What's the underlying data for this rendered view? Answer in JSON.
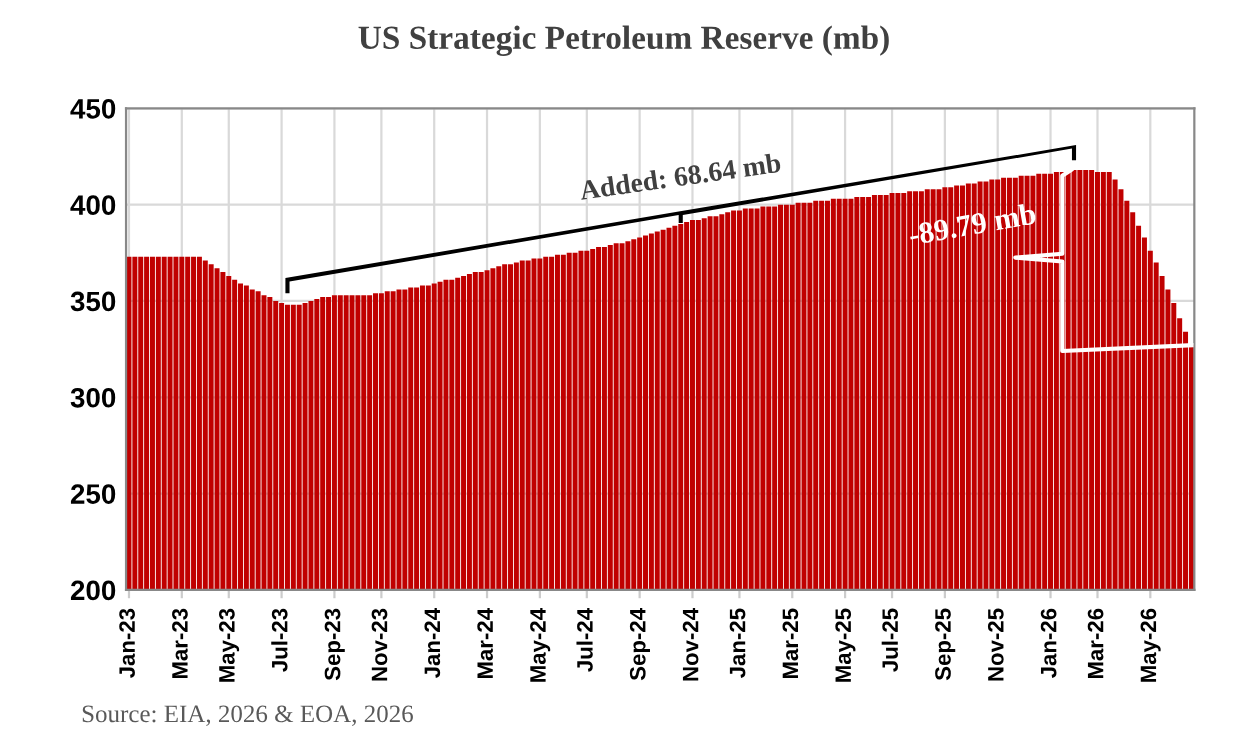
{
  "chart_data": {
    "type": "bar",
    "title": "US Strategic Petroleum Reserve (mb)",
    "categories": [
      "Jan-23",
      null,
      null,
      null,
      null,
      null,
      null,
      null,
      null,
      "Mar-23",
      null,
      null,
      null,
      null,
      null,
      null,
      null,
      "May-23",
      null,
      null,
      null,
      null,
      null,
      null,
      null,
      null,
      "Jul-23",
      null,
      null,
      null,
      null,
      null,
      null,
      null,
      null,
      "Sep-23",
      null,
      null,
      null,
      null,
      null,
      null,
      null,
      "Nov-23",
      null,
      null,
      null,
      null,
      null,
      null,
      null,
      null,
      "Jan-24",
      null,
      null,
      null,
      null,
      null,
      null,
      null,
      null,
      "Mar-24",
      null,
      null,
      null,
      null,
      null,
      null,
      null,
      null,
      "May-24",
      null,
      null,
      null,
      null,
      null,
      null,
      null,
      "Jul-24",
      null,
      null,
      null,
      null,
      null,
      null,
      null,
      null,
      "Sep-24",
      null,
      null,
      null,
      null,
      null,
      null,
      null,
      null,
      "Nov-24",
      null,
      null,
      null,
      null,
      null,
      null,
      null,
      "Jan-25",
      null,
      null,
      null,
      null,
      null,
      null,
      null,
      null,
      "Mar-25",
      null,
      null,
      null,
      null,
      null,
      null,
      null,
      null,
      "May-25",
      null,
      null,
      null,
      null,
      null,
      null,
      null,
      "Jul-25",
      null,
      null,
      null,
      null,
      null,
      null,
      null,
      null,
      "Sep-25",
      null,
      null,
      null,
      null,
      null,
      null,
      null,
      null,
      "Nov-25",
      null,
      null,
      null,
      null,
      null,
      null,
      null,
      null,
      "Jan-26",
      null,
      null,
      null,
      null,
      null,
      null,
      null,
      "Mar-26",
      null,
      null,
      null,
      null,
      null,
      null,
      null,
      null,
      "May-26",
      null,
      null,
      null,
      null,
      null,
      null,
      null
    ],
    "values": [
      373,
      373,
      373,
      373,
      373,
      373,
      373,
      373,
      373,
      373,
      373,
      373,
      373,
      371,
      369,
      367,
      365,
      363,
      361,
      359,
      358,
      356,
      355,
      353,
      352,
      350,
      349,
      348,
      348,
      348,
      349,
      350,
      351,
      352,
      352,
      353,
      353,
      353,
      353,
      353,
      353,
      353,
      354,
      354,
      355,
      355,
      356,
      356,
      357,
      357,
      358,
      358,
      359,
      360,
      361,
      361,
      362,
      363,
      364,
      365,
      365,
      366,
      367,
      368,
      369,
      369,
      370,
      371,
      371,
      372,
      372,
      373,
      373,
      374,
      374,
      375,
      375,
      376,
      376,
      377,
      378,
      378,
      379,
      380,
      380,
      381,
      382,
      383,
      384,
      385,
      386,
      387,
      388,
      389,
      390,
      391,
      392,
      392,
      393,
      394,
      394,
      395,
      396,
      397,
      397,
      398,
      398,
      398,
      399,
      399,
      399,
      400,
      400,
      400,
      401,
      401,
      401,
      402,
      402,
      402,
      403,
      403,
      403,
      403,
      404,
      404,
      404,
      405,
      405,
      405,
      406,
      406,
      406,
      407,
      407,
      407,
      408,
      408,
      408,
      409,
      409,
      410,
      410,
      411,
      411,
      412,
      412,
      413,
      413,
      414,
      414,
      414,
      415,
      415,
      415,
      416,
      416,
      416,
      417,
      417,
      417,
      418,
      418,
      418,
      418,
      417,
      417,
      417,
      413,
      408,
      402,
      396,
      389,
      383,
      376,
      370,
      363,
      356,
      349,
      341,
      334,
      327
    ],
    "color": "#c00000",
    "ylim": [
      200,
      450
    ],
    "yticks": [
      200,
      250,
      300,
      350,
      400,
      450
    ],
    "grid": true,
    "annotations": [
      "Added: 68.64 mb",
      "-89.79 mb",
      "Source: EIA, 2026 & EOA, 2026"
    ]
  }
}
